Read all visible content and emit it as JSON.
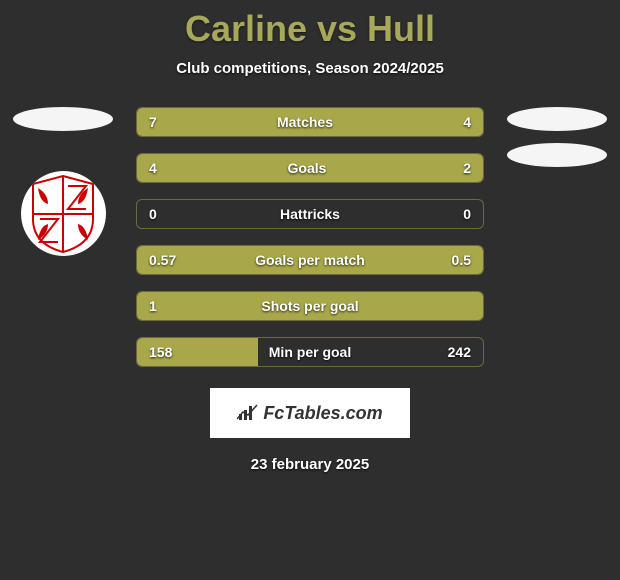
{
  "title": "Carline vs Hull",
  "subtitle": "Club competitions, Season 2024/2025",
  "date": "23 february 2025",
  "brand": "FcTables.com",
  "colors": {
    "background": "#2e2e2e",
    "accent": "#a8a84a",
    "title": "#a8a85a",
    "border": "#6a6a3d"
  },
  "stats": [
    {
      "label": "Matches",
      "left_value": "7",
      "right_value": "4",
      "left_fill_pct": 100,
      "right_fill_pct": 0,
      "label_offset": -5
    },
    {
      "label": "Goals",
      "left_value": "4",
      "right_value": "2",
      "left_fill_pct": 66,
      "right_fill_pct": 34,
      "label_offset": -3
    },
    {
      "label": "Hattricks",
      "left_value": "0",
      "right_value": "0",
      "left_fill_pct": 0,
      "right_fill_pct": 0,
      "label_offset": 0
    },
    {
      "label": "Goals per match",
      "left_value": "0.57",
      "right_value": "0.5",
      "left_fill_pct": 53,
      "right_fill_pct": 47,
      "label_offset": 0
    },
    {
      "label": "Shots per goal",
      "left_value": "1",
      "right_value": "",
      "left_fill_pct": 100,
      "right_fill_pct": 0,
      "label_offset": 0
    },
    {
      "label": "Min per goal",
      "left_value": "158",
      "right_value": "242",
      "left_fill_pct": 35,
      "right_fill_pct": 0,
      "label_offset": 0
    }
  ]
}
